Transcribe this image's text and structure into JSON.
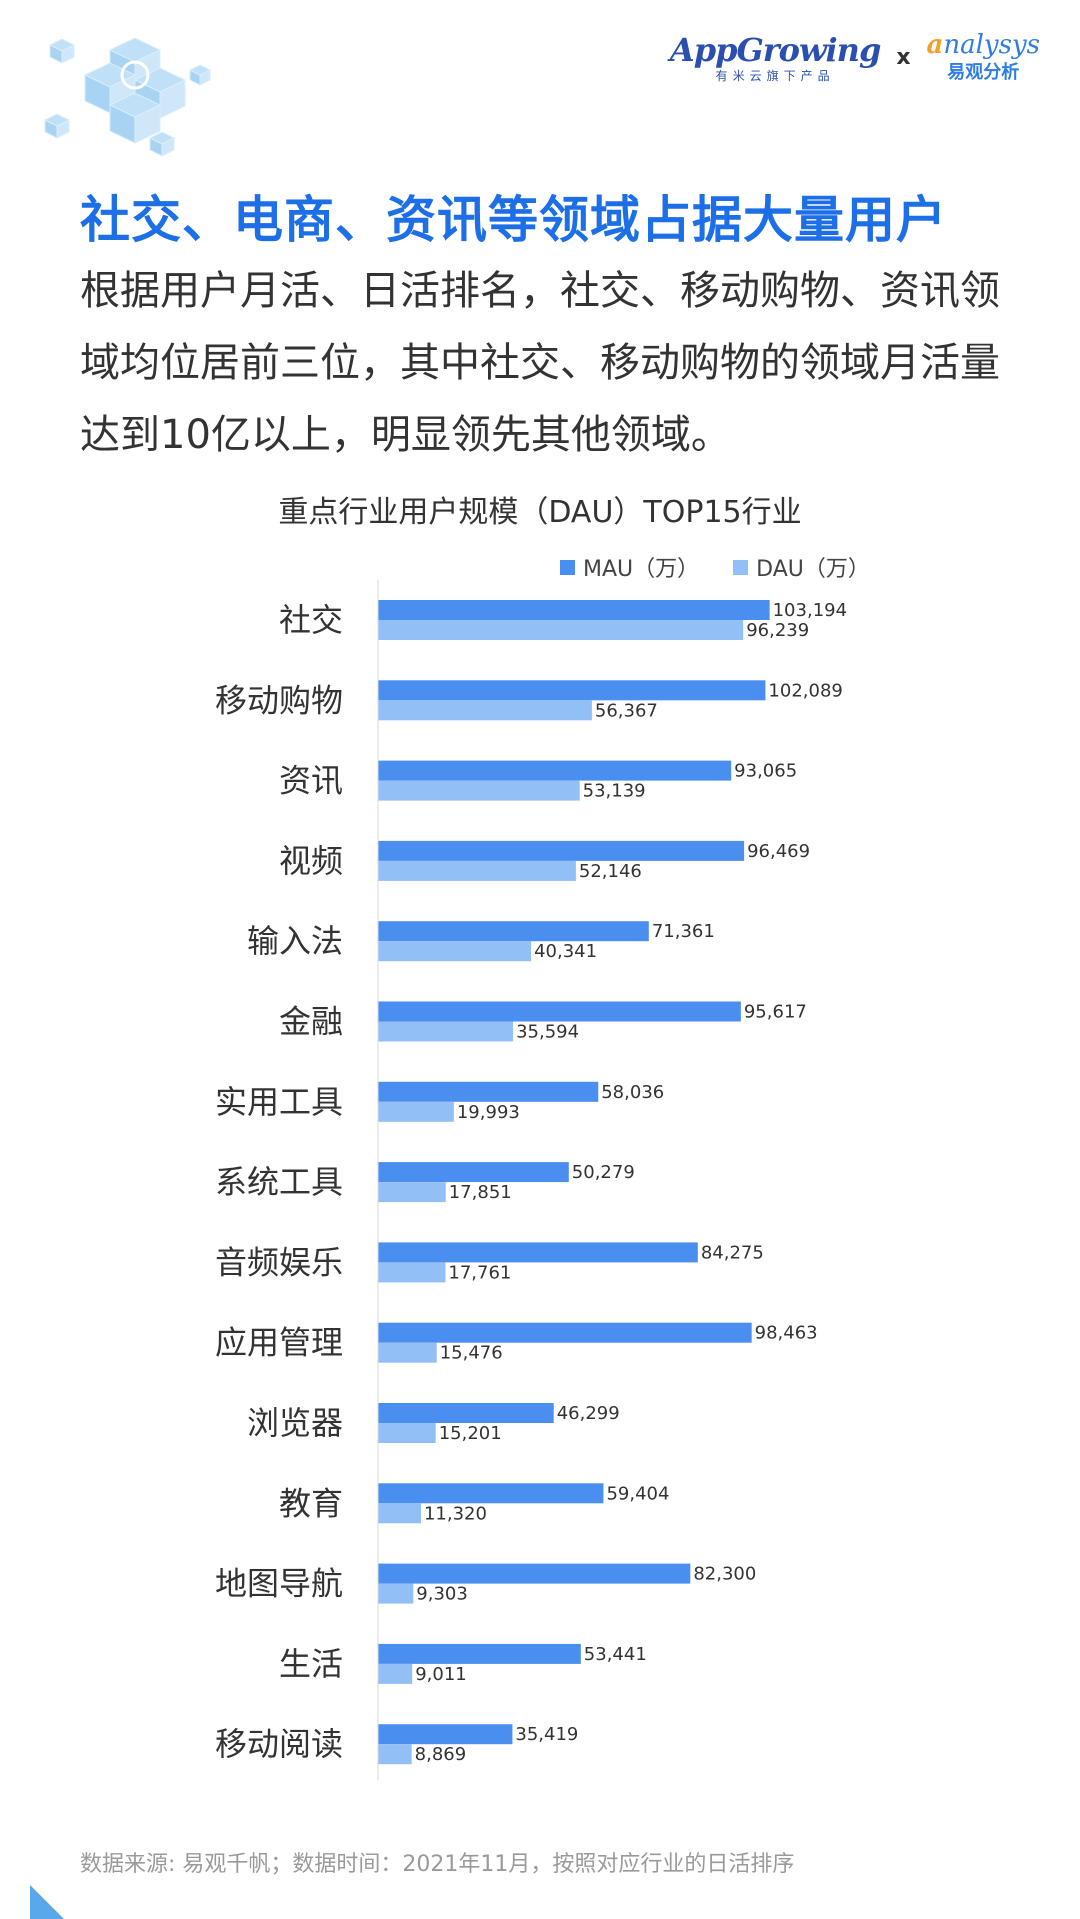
{
  "brand": {
    "appgrowing_name": "AppGrowing",
    "appgrowing_sub": "有米云旗下产品",
    "separator": "x",
    "analysys_name_initial": "a",
    "analysys_name_rest": "nalysys",
    "analysys_sub": "易观分析"
  },
  "headline": "社交、电商、资讯等领域占据大量用户",
  "intro": "根据用户月活、日活排名，社交、移动购物、资讯领域均位居前三位，其中社交、移动购物的领域月活量达到10亿以上，明显领先其他领域。",
  "source": "数据来源: 易观千帆；数据时间：2021年11月，按照对应行业的日活排序",
  "colors": {
    "mau": "#4a8ff0",
    "dau": "#93bff7",
    "accent": "#1c6fe6"
  },
  "chart_data": {
    "type": "bar",
    "orientation": "horizontal",
    "title": "重点行业用户规模（DAU）TOP15行业",
    "categories": [
      "社交",
      "移动购物",
      "资讯",
      "视频",
      "输入法",
      "金融",
      "实用工具",
      "系统工具",
      "音频娱乐",
      "应用管理",
      "浏览器",
      "教育",
      "地图导航",
      "生活",
      "移动阅读"
    ],
    "series": [
      {
        "name": "MAU（万）",
        "values": [
          103194,
          102089,
          93065,
          96469,
          71361,
          95617,
          58036,
          50279,
          84275,
          98463,
          46299,
          59404,
          82300,
          53441,
          35419
        ]
      },
      {
        "name": "DAU（万）",
        "values": [
          96239,
          56367,
          53139,
          52146,
          40341,
          35594,
          19993,
          17851,
          17761,
          15476,
          15201,
          11320,
          9303,
          9011,
          8869
        ]
      }
    ],
    "data_labels": {
      "MAU": [
        "103,194",
        "102,089",
        "93,065",
        "96,469",
        "71,361",
        "95,617",
        "58,036",
        "50,279",
        "84,275",
        "98,463",
        "46,299",
        "59,404",
        "82,300",
        "53,441",
        "35,419"
      ],
      "DAU": [
        "96,239",
        "56,367",
        "53,139",
        "52,146",
        "40,341",
        "35,594",
        "19,993",
        "17,851",
        "17,761",
        "15,476",
        "15,201",
        "11,320",
        "9,303",
        "9,011",
        "8,869"
      ]
    },
    "legend_position": "top-right",
    "grid": false
  }
}
